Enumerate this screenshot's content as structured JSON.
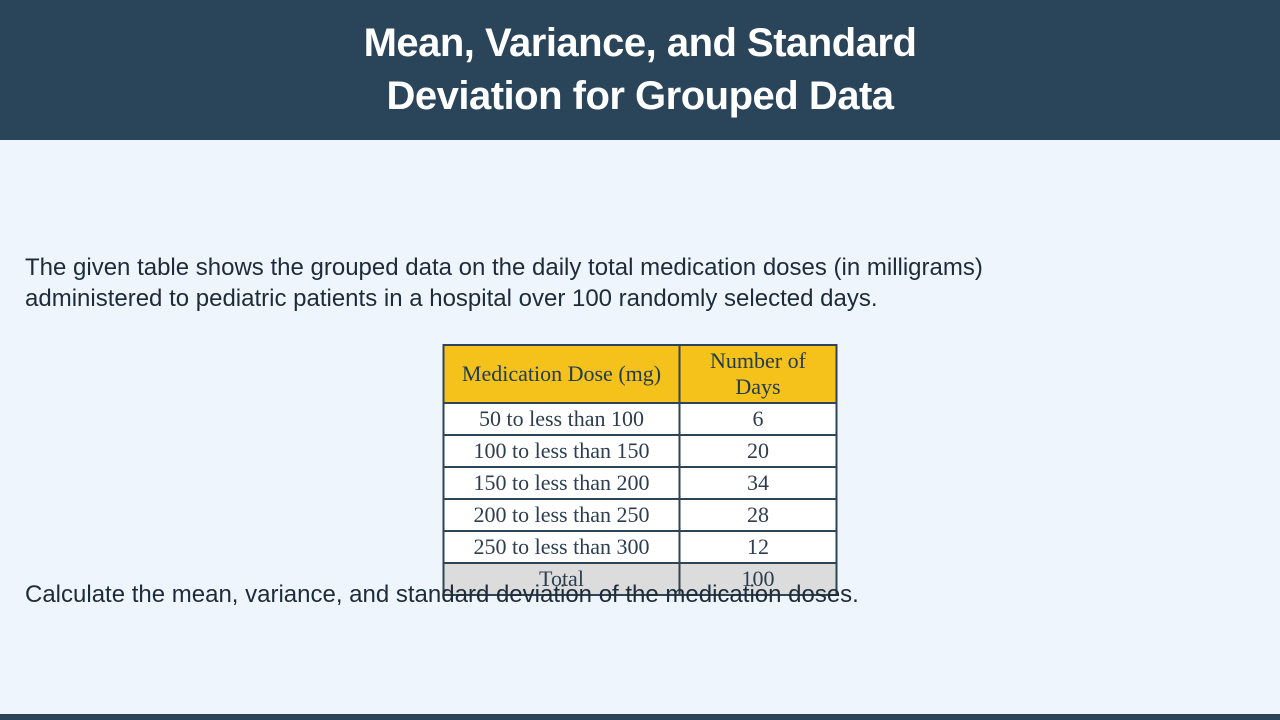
{
  "header": {
    "title_lines": [
      "Mean, Variance, and Standard",
      "Deviation for Grouped Data"
    ]
  },
  "body": {
    "intro_lines": [
      "The given table shows the grouped data on the daily total medication doses (in milligrams)",
      "administered to pediatric patients in a hospital over 100 randomly selected days."
    ],
    "question": "Calculate the mean, variance, and standard deviation of the medication doses."
  },
  "table": {
    "headers": [
      "Medication Dose (mg)",
      "Number of Days"
    ],
    "rows": [
      {
        "dose": "50 to less than 100",
        "days": "6"
      },
      {
        "dose": "100 to less than 150",
        "days": "20"
      },
      {
        "dose": "150 to less than 200",
        "days": "34"
      },
      {
        "dose": "200 to less than 250",
        "days": "28"
      },
      {
        "dose": "250 to less than 300",
        "days": "12"
      }
    ],
    "total": {
      "label": "Total",
      "value": "100"
    }
  },
  "colors": {
    "header_bg": "#2A4459",
    "body_bg": "#EFF5FD",
    "table_header_bg": "#F5C21B",
    "table_border": "#2F4456",
    "total_row_bg": "#DCDCDC",
    "text_dark": "#1E2B38",
    "title_text": "#FFFFFF"
  }
}
